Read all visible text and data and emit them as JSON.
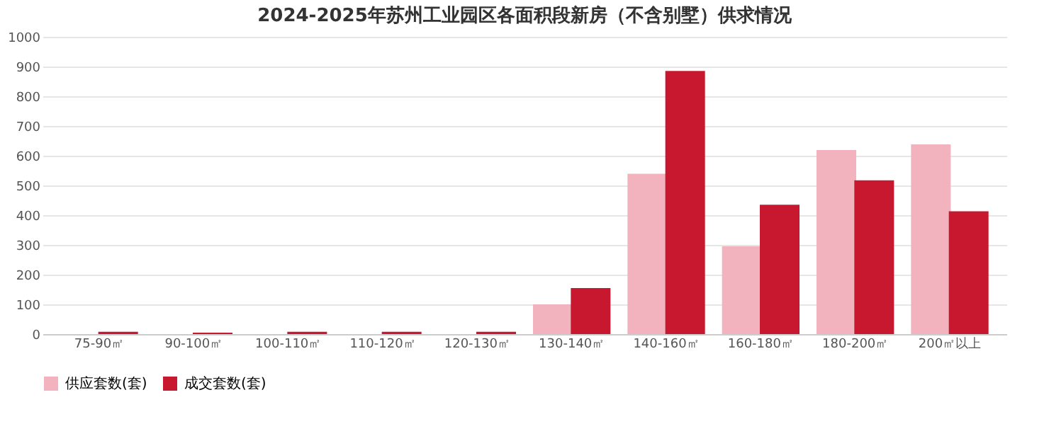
{
  "chart_data": {
    "type": "bar",
    "title": "2024-2025年苏州工业园区各面积段新房（不含别墅）供求情况",
    "categories": [
      "75-90㎡",
      "90-100㎡",
      "100-110㎡",
      "110-120㎡",
      "120-130㎡",
      "130-140㎡",
      "140-160㎡",
      "160-180㎡",
      "180-200㎡",
      "200㎡以上"
    ],
    "series": [
      {
        "name": "供应套数(套)",
        "color": "#f2b3bf",
        "values": [
          0,
          0,
          0,
          0,
          0,
          100,
          539,
          295,
          619,
          638
        ]
      },
      {
        "name": "成交套数(套)",
        "color": "#c8182f",
        "values": [
          8,
          5,
          8,
          8,
          8,
          155,
          885,
          435,
          517,
          413
        ]
      }
    ],
    "ylim": [
      0,
      1000
    ],
    "yticks": [
      0,
      100,
      200,
      300,
      400,
      500,
      600,
      700,
      800,
      900,
      1000
    ],
    "grid": "y",
    "legend": "bottom"
  }
}
